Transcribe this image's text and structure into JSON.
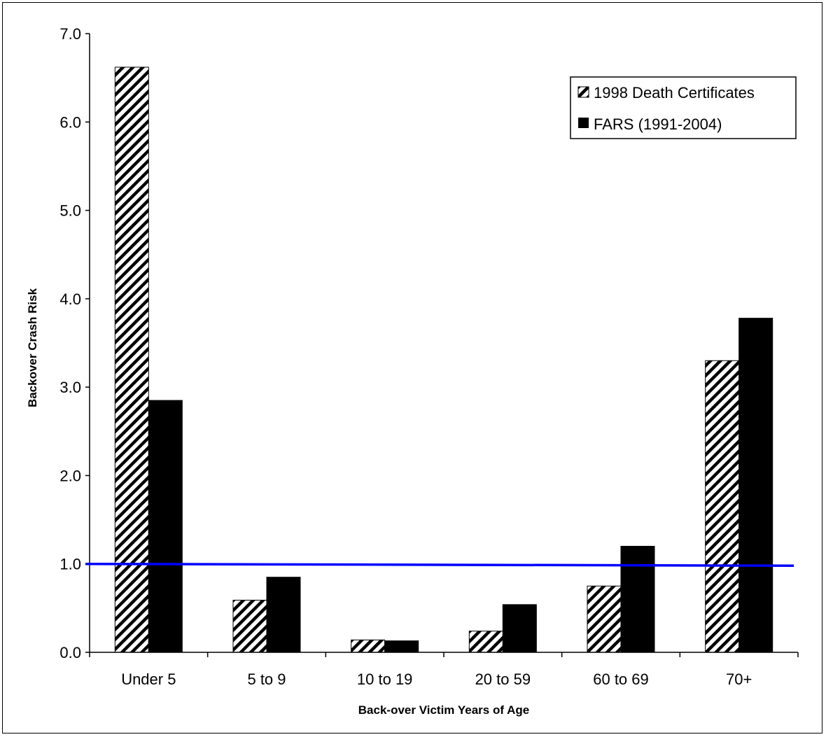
{
  "chart_data": {
    "type": "bar",
    "title": "",
    "xlabel": "Back-over Victim Years of Age",
    "ylabel": "Backover Crash Risk",
    "categories": [
      "Under 5",
      "5 to 9",
      "10 to 19",
      "20 to 59",
      "60 to 69",
      "70+"
    ],
    "series": [
      {
        "name": "1998 Death Certificates",
        "values": [
          6.62,
          0.59,
          0.14,
          0.24,
          0.75,
          3.3
        ],
        "fill": "hatch",
        "color": "#000000"
      },
      {
        "name": "FARS (1991-2004)",
        "values": [
          2.85,
          0.85,
          0.13,
          0.54,
          1.2,
          3.78
        ],
        "fill": "solid",
        "color": "#000000"
      }
    ],
    "ylim": [
      0,
      7
    ],
    "yticks": [
      "0.0",
      "1.0",
      "2.0",
      "3.0",
      "4.0",
      "5.0",
      "6.0",
      "7.0"
    ],
    "grid": false,
    "legend_position": "top-right",
    "reference_line": {
      "y_start": 1.0,
      "y_end": 0.98,
      "color": "#0000ff"
    }
  }
}
